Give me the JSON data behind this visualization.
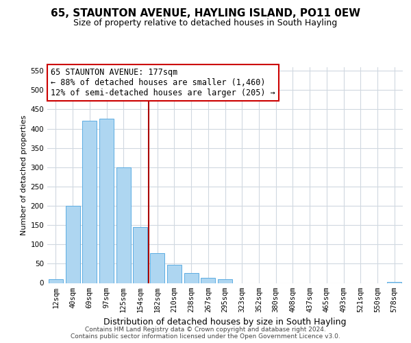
{
  "title": "65, STAUNTON AVENUE, HAYLING ISLAND, PO11 0EW",
  "subtitle": "Size of property relative to detached houses in South Hayling",
  "xlabel": "Distribution of detached houses by size in South Hayling",
  "ylabel": "Number of detached properties",
  "categories": [
    "12sqm",
    "40sqm",
    "69sqm",
    "97sqm",
    "125sqm",
    "154sqm",
    "182sqm",
    "210sqm",
    "238sqm",
    "267sqm",
    "295sqm",
    "323sqm",
    "352sqm",
    "380sqm",
    "408sqm",
    "437sqm",
    "465sqm",
    "493sqm",
    "521sqm",
    "550sqm",
    "578sqm"
  ],
  "values": [
    10,
    200,
    420,
    425,
    300,
    145,
    78,
    48,
    26,
    14,
    9,
    0,
    0,
    0,
    0,
    0,
    0,
    0,
    0,
    0,
    3
  ],
  "bar_color": "#aed6f1",
  "bar_edge_color": "#5dade2",
  "vline_color": "#aa0000",
  "annotation_title": "65 STAUNTON AVENUE: 177sqm",
  "annotation_line1": "← 88% of detached houses are smaller (1,460)",
  "annotation_line2": "12% of semi-detached houses are larger (205) →",
  "annotation_box_color": "#ffffff",
  "annotation_box_edge": "#cc0000",
  "ylim": [
    0,
    560
  ],
  "yticks": [
    0,
    50,
    100,
    150,
    200,
    250,
    300,
    350,
    400,
    450,
    500,
    550
  ],
  "footer_line1": "Contains HM Land Registry data © Crown copyright and database right 2024.",
  "footer_line2": "Contains public sector information licensed under the Open Government Licence v3.0.",
  "background_color": "#ffffff",
  "grid_color": "#d0d8e0",
  "title_fontsize": 11,
  "subtitle_fontsize": 9,
  "xlabel_fontsize": 9,
  "ylabel_fontsize": 8,
  "tick_fontsize": 7.5,
  "annot_fontsize": 8.5,
  "footer_fontsize": 6.5,
  "vline_bar_index": 6
}
